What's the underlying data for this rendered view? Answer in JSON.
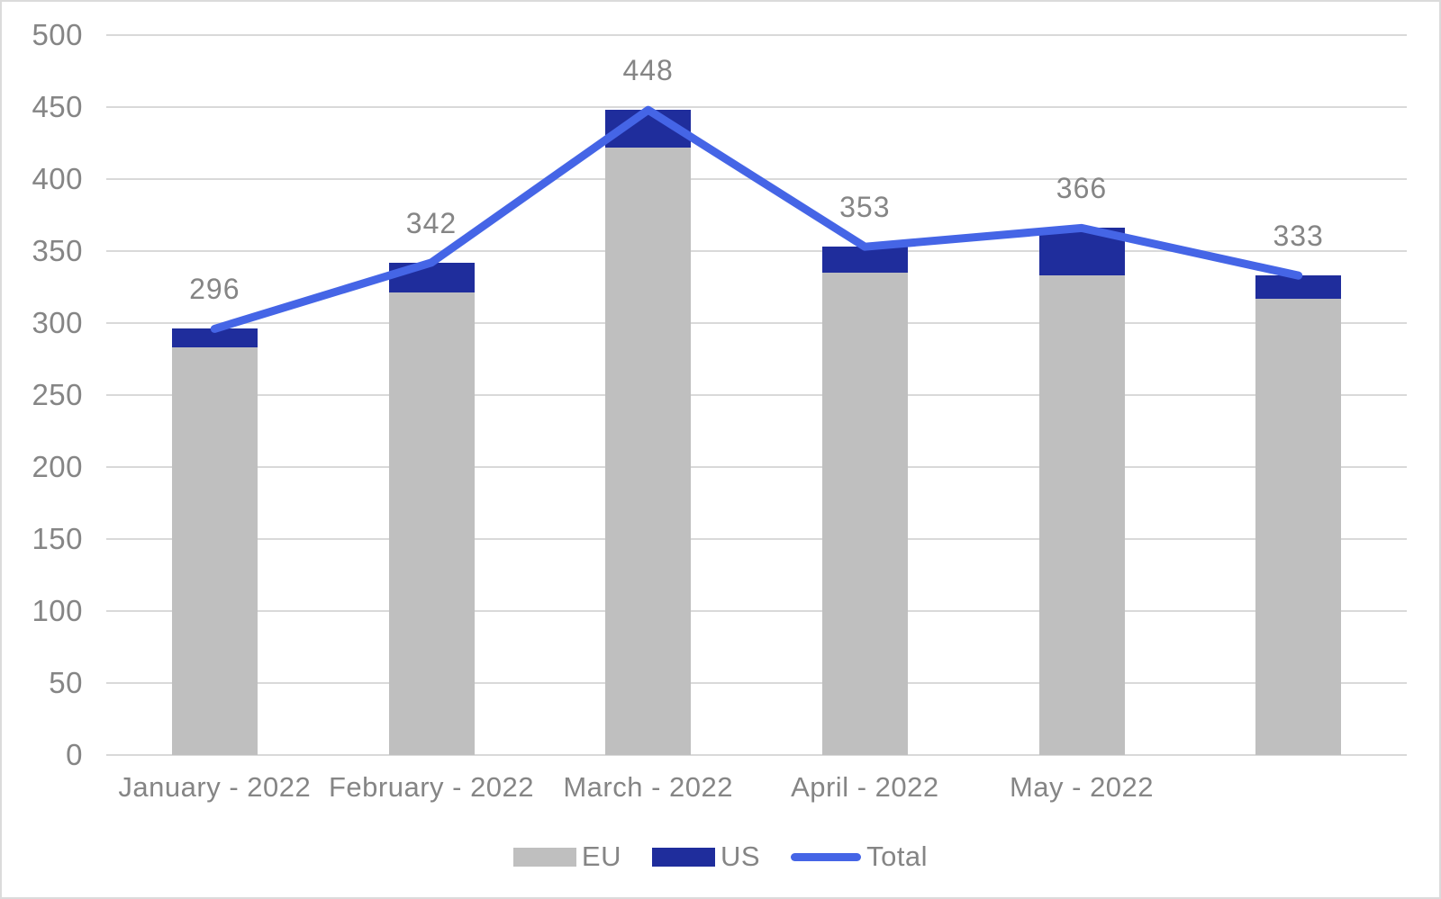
{
  "chart_data": {
    "type": "bar",
    "subtype": "stacked-columns-with-total-line",
    "title": "",
    "xlabel": "",
    "ylabel": "",
    "categories": [
      "January - 2022",
      "February - 2022",
      "March - 2022",
      "April - 2022",
      "May - 2022",
      ""
    ],
    "series": [
      {
        "name": "EU",
        "type": "bar",
        "color": "#BFBFBF",
        "values": [
          283,
          321,
          422,
          335,
          333,
          317
        ]
      },
      {
        "name": "US",
        "type": "bar",
        "color": "#1F2D9C",
        "values": [
          13,
          21,
          26,
          18,
          33,
          16
        ]
      },
      {
        "name": "Total",
        "type": "line",
        "color": "#4565E6",
        "values": [
          296,
          342,
          448,
          353,
          366,
          333
        ]
      }
    ],
    "data_labels": [
      "296",
      "342",
      "448",
      "353",
      "366",
      "333"
    ],
    "ylim": [
      0,
      500
    ],
    "y_ticks": [
      0,
      50,
      100,
      150,
      200,
      250,
      300,
      350,
      400,
      450,
      500
    ],
    "grid": true,
    "legend_position": "bottom",
    "text_color": "#858585",
    "gridline_color": "#D9D9D9",
    "background": "#FFFFFF"
  },
  "legend": {
    "items": [
      {
        "label": "EU",
        "color": "#BFBFBF",
        "type": "swatch"
      },
      {
        "label": "US",
        "color": "#1F2D9C",
        "type": "swatch"
      },
      {
        "label": "Total",
        "color": "#4565E6",
        "type": "line"
      }
    ]
  }
}
